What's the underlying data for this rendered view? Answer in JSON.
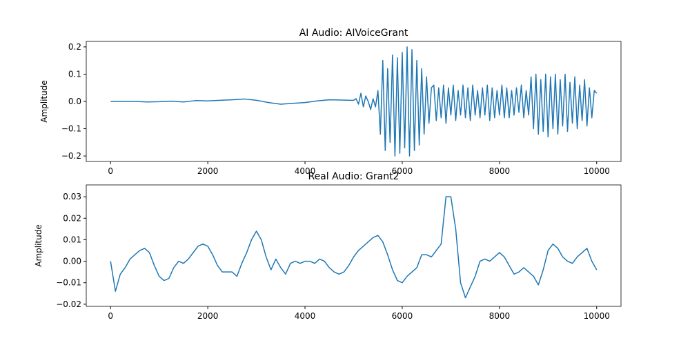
{
  "chart_data": [
    {
      "type": "line",
      "title": "AI Audio: AIVoiceGrant",
      "y_label": "Amplitude",
      "xlim": [
        -500,
        10500
      ],
      "ylim": [
        -0.22,
        0.22
      ],
      "xticks": [
        0,
        2000,
        4000,
        6000,
        8000,
        10000
      ],
      "yticks": [
        {
          "value": -0.2,
          "label": "−0.2"
        },
        {
          "value": -0.1,
          "label": "−0.1"
        },
        {
          "value": 0,
          "label": "0.0"
        },
        0.1,
        0.2
      ],
      "x": [
        0,
        250,
        500,
        750,
        1000,
        1250,
        1500,
        1750,
        2000,
        2250,
        2500,
        2750,
        3000,
        3250,
        3500,
        3750,
        4000,
        4250,
        4500,
        4750,
        5000,
        5050,
        5100,
        5150,
        5200,
        5250,
        5300,
        5350,
        5400,
        5450,
        5500,
        5550,
        5600,
        5650,
        5700,
        5750,
        5800,
        5850,
        5900,
        5950,
        6000,
        6050,
        6100,
        6150,
        6200,
        6250,
        6300,
        6350,
        6400,
        6450,
        6500,
        6550,
        6600,
        6650,
        6700,
        6750,
        6800,
        6850,
        6900,
        6950,
        7000,
        7050,
        7100,
        7150,
        7200,
        7250,
        7300,
        7350,
        7400,
        7450,
        7500,
        7550,
        7600,
        7650,
        7700,
        7750,
        7800,
        7850,
        7900,
        7950,
        8000,
        8050,
        8100,
        8150,
        8200,
        8250,
        8300,
        8350,
        8400,
        8450,
        8500,
        8550,
        8600,
        8650,
        8700,
        8750,
        8800,
        8850,
        8900,
        8950,
        9000,
        9050,
        9100,
        9150,
        9200,
        9250,
        9300,
        9350,
        9400,
        9450,
        9500,
        9550,
        9600,
        9650,
        9700,
        9750,
        9800,
        9850,
        9900,
        9950,
        10000
      ],
      "series": [
        {
          "color": "#1f77b4",
          "values": [
            0,
            0,
            0,
            -0.002,
            -0.001,
            0.001,
            -0.002,
            0.003,
            0.002,
            0.004,
            0.006,
            0.009,
            0.004,
            -0.004,
            -0.01,
            -0.007,
            -0.004,
            0.002,
            0.006,
            0.005,
            0.004,
            0.01,
            -0.01,
            0.03,
            -0.02,
            0.02,
            0.0,
            -0.03,
            0.01,
            -0.02,
            0.04,
            -0.12,
            0.15,
            -0.18,
            0.12,
            -0.15,
            0.17,
            -0.2,
            0.16,
            -0.19,
            0.18,
            -0.17,
            0.2,
            -0.2,
            0.19,
            -0.18,
            0.15,
            -0.16,
            0.12,
            -0.12,
            0.09,
            -0.08,
            0.05,
            0.06,
            -0.07,
            0.05,
            -0.06,
            0.06,
            -0.08,
            0.05,
            -0.05,
            0.06,
            -0.07,
            0.04,
            -0.05,
            0.06,
            -0.06,
            0.05,
            -0.07,
            0.06,
            -0.05,
            0.04,
            -0.06,
            0.05,
            -0.05,
            0.06,
            -0.07,
            0.05,
            -0.06,
            0.04,
            -0.05,
            0.06,
            -0.06,
            0.05,
            -0.06,
            0.04,
            -0.05,
            0.05,
            -0.04,
            0.06,
            -0.06,
            0.04,
            -0.05,
            0.09,
            -0.1,
            0.1,
            -0.12,
            0.08,
            -0.11,
            0.1,
            -0.13,
            0.09,
            -0.1,
            0.1,
            -0.12,
            0.08,
            -0.09,
            0.1,
            -0.11,
            0.07,
            -0.08,
            0.09,
            -0.1,
            0.06,
            -0.07,
            0.08,
            -0.09,
            0.05,
            -0.06,
            0.04,
            0.03
          ]
        }
      ]
    },
    {
      "type": "line",
      "title": "Real Audio: Grant2",
      "y_label": "Amplitude",
      "xlim": [
        -500,
        10500
      ],
      "ylim": [
        -0.021,
        0.0355
      ],
      "xticks": [
        0,
        2000,
        4000,
        6000,
        8000,
        10000
      ],
      "yticks": [
        {
          "value": -0.02,
          "label": "−0.02"
        },
        {
          "value": -0.01,
          "label": "−0.01"
        },
        {
          "value": 0,
          "label": "0.00"
        },
        0.01,
        0.02,
        0.03
      ],
      "x": [
        0,
        100,
        200,
        300,
        400,
        500,
        600,
        700,
        800,
        900,
        1000,
        1100,
        1200,
        1300,
        1400,
        1500,
        1600,
        1700,
        1800,
        1900,
        2000,
        2100,
        2200,
        2300,
        2400,
        2500,
        2600,
        2700,
        2800,
        2900,
        3000,
        3100,
        3200,
        3300,
        3400,
        3500,
        3600,
        3700,
        3800,
        3900,
        4000,
        4100,
        4200,
        4300,
        4400,
        4500,
        4600,
        4700,
        4800,
        4900,
        5000,
        5100,
        5200,
        5300,
        5400,
        5500,
        5600,
        5700,
        5800,
        5900,
        6000,
        6100,
        6200,
        6300,
        6400,
        6500,
        6600,
        6700,
        6800,
        6900,
        7000,
        7100,
        7200,
        7300,
        7400,
        7500,
        7600,
        7700,
        7800,
        7900,
        8000,
        8100,
        8200,
        8300,
        8400,
        8500,
        8600,
        8700,
        8800,
        8900,
        9000,
        9100,
        9200,
        9300,
        9400,
        9500,
        9600,
        9700,
        9800,
        9900,
        10000
      ],
      "series": [
        {
          "color": "#1f77b4",
          "values": [
            0.0,
            -0.014,
            -0.006,
            -0.003,
            0.001,
            0.003,
            0.005,
            0.006,
            0.004,
            -0.002,
            -0.007,
            -0.009,
            -0.008,
            -0.003,
            0.0,
            -0.001,
            0.001,
            0.004,
            0.007,
            0.008,
            0.007,
            0.003,
            -0.002,
            -0.005,
            -0.005,
            -0.005,
            -0.007,
            -0.001,
            0.004,
            0.01,
            0.014,
            0.01,
            0.002,
            -0.004,
            0.001,
            -0.003,
            -0.006,
            -0.001,
            0.0,
            -0.001,
            0.0,
            0.0,
            -0.001,
            0.001,
            0.0,
            -0.003,
            -0.005,
            -0.006,
            -0.005,
            -0.002,
            0.002,
            0.005,
            0.007,
            0.009,
            0.011,
            0.012,
            0.009,
            0.003,
            -0.004,
            -0.009,
            -0.01,
            -0.007,
            -0.005,
            -0.003,
            0.003,
            0.003,
            0.002,
            0.005,
            0.008,
            0.03,
            0.03,
            0.015,
            -0.01,
            -0.017,
            -0.012,
            -0.007,
            0.0,
            0.001,
            0.0,
            0.002,
            0.004,
            0.002,
            -0.002,
            -0.006,
            -0.005,
            -0.003,
            -0.005,
            -0.007,
            -0.011,
            -0.004,
            0.005,
            0.008,
            0.006,
            0.002,
            0.0,
            -0.001,
            0.002,
            0.004,
            0.006,
            0.0,
            -0.004
          ]
        }
      ]
    }
  ]
}
